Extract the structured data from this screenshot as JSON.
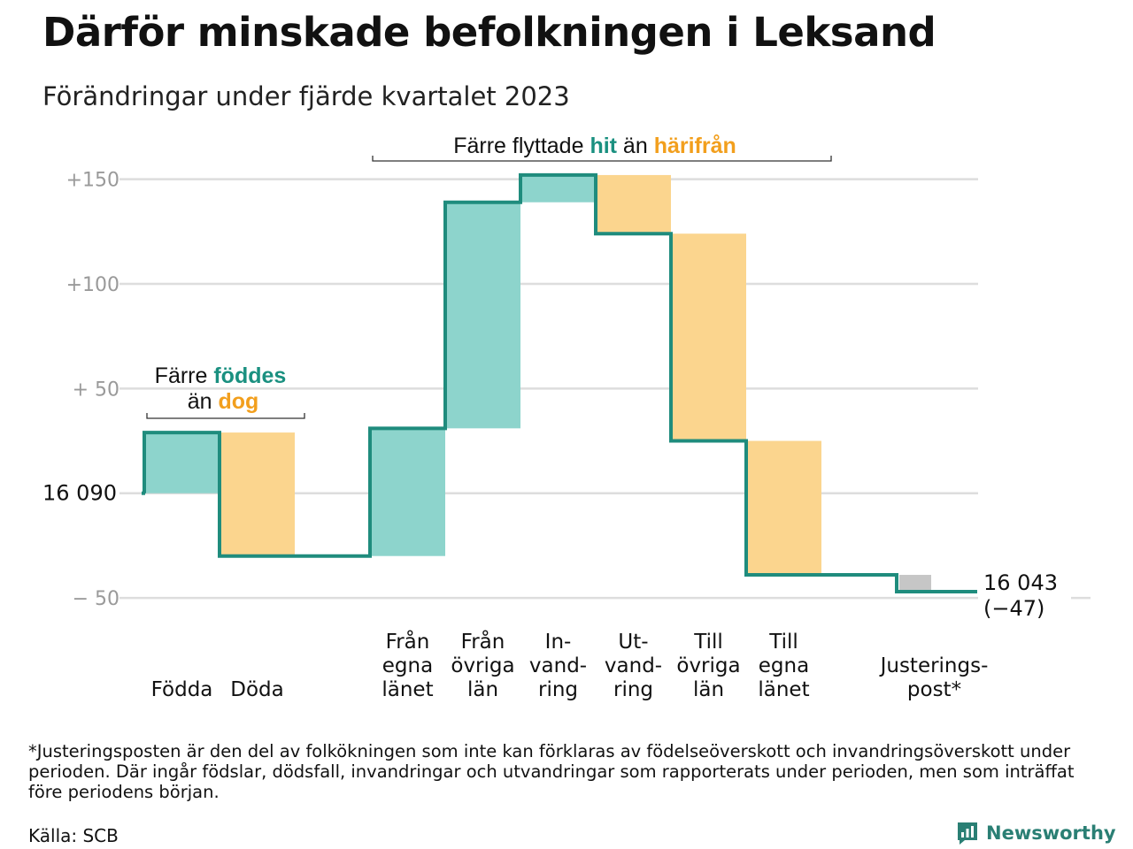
{
  "title": "Därför minskade befolkningen i Leksand",
  "subtitle": "Förändringar under fjärde kvartalet 2023",
  "colors": {
    "line": "#1f8c7d",
    "increase": "#8dd4cc",
    "decrease": "#fbd58e",
    "adjustment": "#c6c6c6",
    "hit": "#1a9080",
    "harifran": "#f29f1d",
    "grid": "#dddddd",
    "tick": "#9a9a9a",
    "brand": "#2a7f74"
  },
  "chart_data": {
    "type": "waterfall",
    "title": "Därför minskade befolkningen i Leksand",
    "subtitle": "Förändringar under fjärde kvartalet 2023",
    "start_label": "16  090",
    "start_value": 16090,
    "end_value_label": "16 043",
    "end_change_label": "(−47)",
    "y_ticks": [
      {
        "value": 150,
        "label": "+150"
      },
      {
        "value": 100,
        "label": "+100"
      },
      {
        "value": 50,
        "label": "+  50"
      },
      {
        "value": 0,
        "label": ""
      },
      {
        "value": -50,
        "label": "−  50"
      }
    ],
    "ylim": [
      -58,
      160
    ],
    "steps": [
      {
        "label": [
          "Födda"
        ],
        "change": 29,
        "kind": "increase"
      },
      {
        "label": [
          "Döda"
        ],
        "change": -59,
        "kind": "decrease"
      },
      {
        "label": [],
        "change": 0,
        "kind": "gap"
      },
      {
        "label": [
          "Från",
          "egna",
          "länet"
        ],
        "change": 61,
        "kind": "increase"
      },
      {
        "label": [
          "Från",
          "övriga",
          "län"
        ],
        "change": 108,
        "kind": "increase"
      },
      {
        "label": [
          "In-",
          "vand-",
          "ring"
        ],
        "change": 13,
        "kind": "increase"
      },
      {
        "label": [
          "Ut-",
          "vand-",
          "ring"
        ],
        "change": -28,
        "kind": "decrease"
      },
      {
        "label": [
          "Till",
          "övriga",
          "län"
        ],
        "change": -99,
        "kind": "decrease"
      },
      {
        "label": [
          "Till",
          "egna",
          "länet"
        ],
        "change": -64,
        "kind": "decrease"
      },
      {
        "label": [],
        "change": 0,
        "kind": "gap"
      },
      {
        "label": [
          "Justerings-",
          "post*"
        ],
        "change": -8,
        "kind": "adjustment"
      }
    ],
    "annotations": {
      "births": {
        "line1": "Färre ",
        "line1_hl": "föddes",
        "line2": "än ",
        "line2_hl": "dog"
      },
      "migration": {
        "part1": "Färre flyttade ",
        "hl1": "hit",
        "part2": " än ",
        "hl2": "härifrån"
      }
    }
  },
  "footnote": "*Justeringsposten är den del av folkökningen som inte kan förklaras av födelseöverskott och invandringsöverskott under perioden. Där ingår födslar, dödsfall, invandringar och utvandringar som rapporterats under perioden, men som inträffat före periodens början.",
  "source": "Källa: SCB",
  "brand": {
    "name": "Newsworthy",
    "icon": "newsworthy-logo-icon"
  }
}
